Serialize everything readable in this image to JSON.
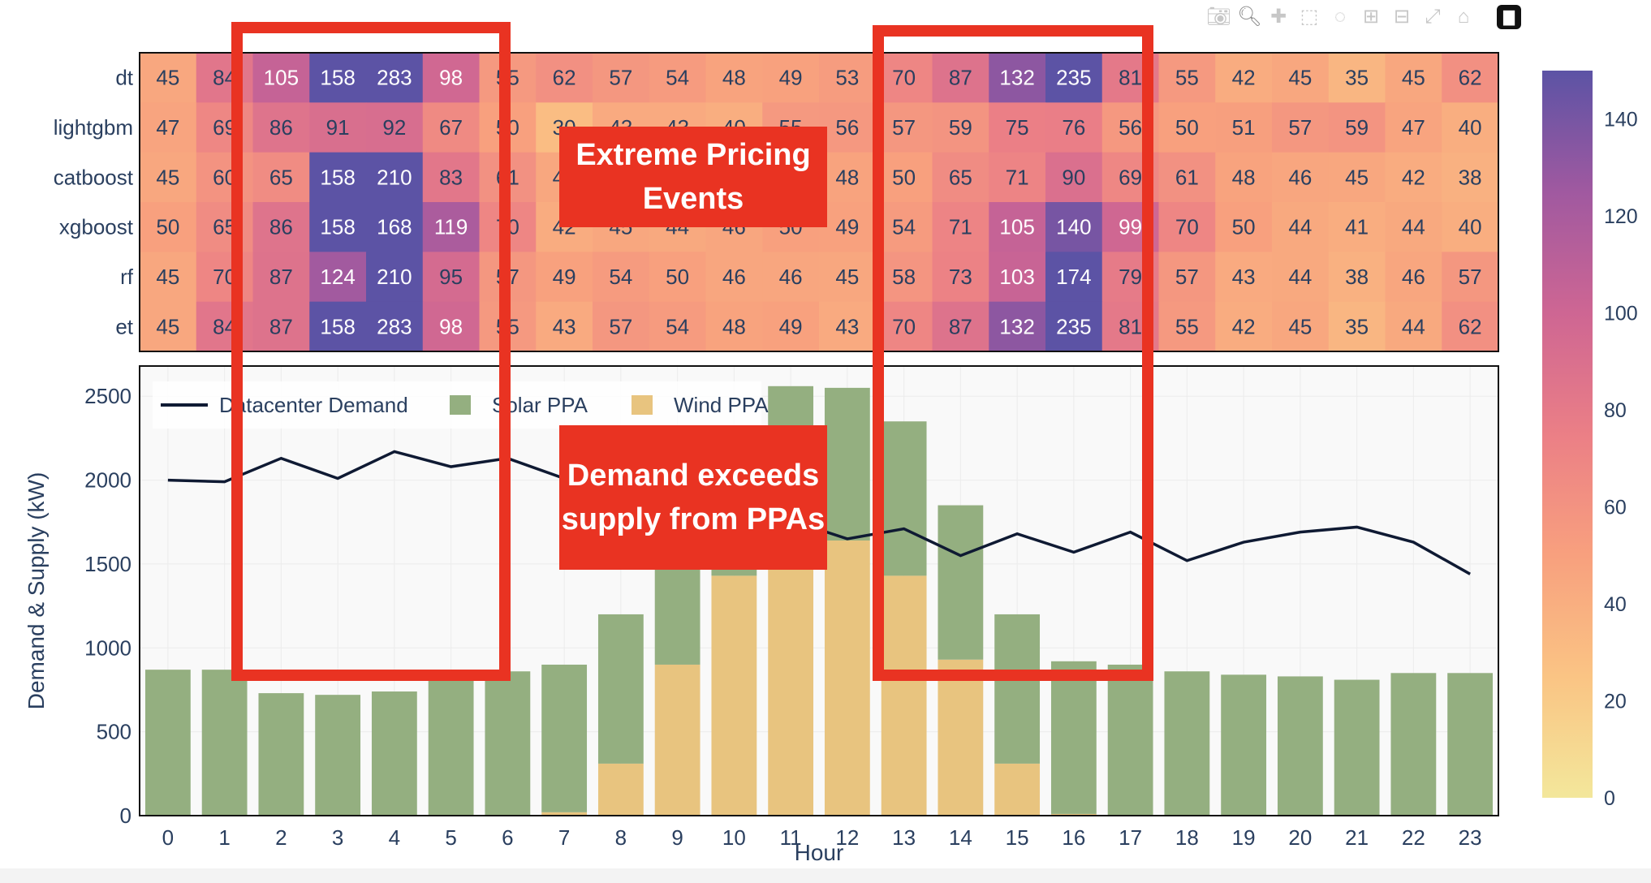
{
  "modebar": {
    "icons": [
      "camera-icon",
      "zoom-icon",
      "pan-icon",
      "box-select-icon",
      "lasso-icon",
      "zoom-in-icon",
      "zoom-out-icon",
      "autoscale-icon",
      "home-icon",
      "plotly-logo-icon"
    ]
  },
  "annotations": {
    "pricing": "Extreme Pricing Events",
    "demand": "Demand exceeds supply from PPAs"
  },
  "chart_data": [
    {
      "type": "heatmap",
      "rows": [
        "dt",
        "lightgbm",
        "catboost",
        "xgboost",
        "rf",
        "et"
      ],
      "x": [
        0,
        1,
        2,
        3,
        4,
        5,
        6,
        7,
        8,
        9,
        10,
        11,
        12,
        13,
        14,
        15,
        16,
        17,
        18,
        19,
        20,
        21,
        22,
        23
      ],
      "values": [
        [
          45,
          84,
          105,
          158,
          283,
          98,
          55,
          62,
          57,
          54,
          48,
          49,
          53,
          70,
          87,
          132,
          235,
          81,
          55,
          42,
          45,
          35,
          45,
          62
        ],
        [
          47,
          69,
          86,
          91,
          92,
          67,
          50,
          30,
          43,
          43,
          40,
          55,
          56,
          57,
          59,
          75,
          76,
          56,
          50,
          51,
          57,
          59,
          47,
          40
        ],
        [
          45,
          60,
          65,
          158,
          210,
          83,
          61,
          45,
          48,
          46,
          45,
          46,
          48,
          50,
          65,
          71,
          90,
          69,
          61,
          48,
          46,
          45,
          42,
          38
        ],
        [
          50,
          65,
          86,
          158,
          168,
          119,
          70,
          42,
          45,
          44,
          46,
          50,
          49,
          54,
          71,
          105,
          140,
          99,
          70,
          50,
          44,
          41,
          44,
          40
        ],
        [
          45,
          70,
          87,
          124,
          210,
          95,
          57,
          49,
          54,
          50,
          46,
          46,
          45,
          58,
          73,
          103,
          174,
          79,
          57,
          43,
          44,
          38,
          46,
          57
        ],
        [
          45,
          84,
          87,
          158,
          283,
          98,
          55,
          43,
          57,
          54,
          48,
          49,
          43,
          70,
          87,
          132,
          235,
          81,
          55,
          42,
          45,
          35,
          44,
          62
        ]
      ],
      "colorscale": {
        "range": [
          0,
          150
        ],
        "ticks": [
          0,
          20,
          40,
          60,
          80,
          100,
          120,
          140
        ],
        "colors": [
          "#f3e79b",
          "#fac484",
          "#f8a07e",
          "#eb7f86",
          "#ce6693",
          "#a059a0",
          "#5c53a5"
        ]
      }
    },
    {
      "type": "bar",
      "stacked": true,
      "x": [
        0,
        1,
        2,
        3,
        4,
        5,
        6,
        7,
        8,
        9,
        10,
        11,
        12,
        13,
        14,
        15,
        16,
        17,
        18,
        19,
        20,
        21,
        22,
        23
      ],
      "xlabel": "Hour",
      "ylabel": "Demand & Supply (kW)",
      "ylim": [
        0,
        2680
      ],
      "yticks": [
        0,
        500,
        1000,
        1500,
        2000,
        2500
      ],
      "series": [
        {
          "name": "Datacenter Demand",
          "kind": "line",
          "color": "#0f1a33",
          "values": [
            2000,
            1990,
            2130,
            2010,
            2170,
            2080,
            2130,
            2010,
            1960,
            1880,
            1760,
            1760,
            1650,
            1710,
            1550,
            1680,
            1570,
            1690,
            1520,
            1630,
            1690,
            1720,
            1630,
            1440
          ]
        },
        {
          "name": "Wind PPA",
          "kind": "bar",
          "color": "#e8c47f",
          "values": [
            0,
            0,
            0,
            0,
            0,
            0,
            0,
            20,
            310,
            900,
            1430,
            1560,
            1640,
            1430,
            930,
            310,
            10,
            0,
            0,
            0,
            0,
            0,
            0,
            0
          ]
        },
        {
          "name": "Solar PPA",
          "kind": "bar",
          "color": "#94af80",
          "values": [
            870,
            870,
            730,
            720,
            740,
            860,
            860,
            880,
            890,
            770,
            40,
            1000,
            910,
            920,
            920,
            890,
            910,
            900,
            860,
            840,
            830,
            810,
            850,
            850
          ]
        }
      ],
      "legend_order": [
        "Datacenter Demand",
        "Solar PPA",
        "Wind PPA"
      ]
    }
  ]
}
